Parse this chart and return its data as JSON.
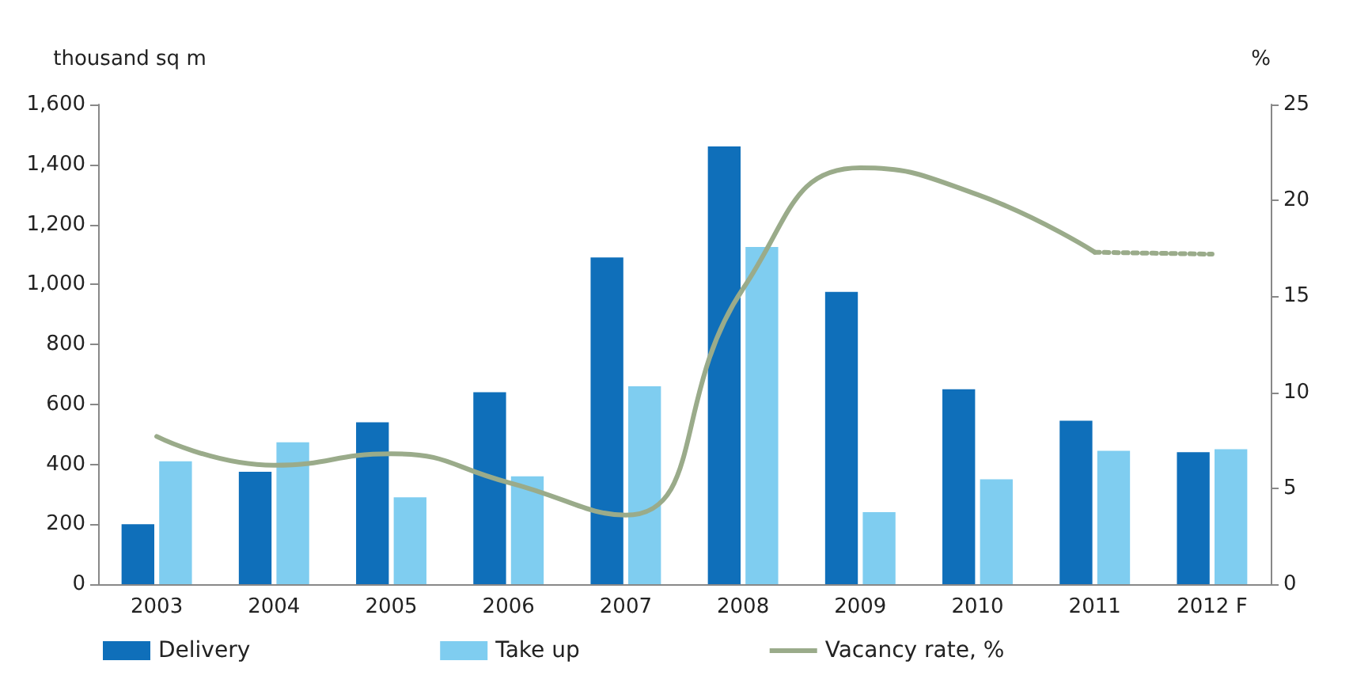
{
  "chart_data": {
    "type": "bar",
    "ylabel": "thousand sq m",
    "y2label": "%",
    "categories": [
      "2003",
      "2004",
      "2005",
      "2006",
      "2007",
      "2008",
      "2009",
      "2010",
      "2011",
      "2012 F"
    ],
    "series": [
      {
        "name": "Delivery",
        "color": "#0f6fba",
        "values": [
          200,
          375,
          540,
          640,
          1090,
          1460,
          975,
          650,
          545,
          440
        ]
      },
      {
        "name": "Take up",
        "color": "#7fcdf0",
        "values": [
          410,
          473,
          290,
          360,
          660,
          1125,
          240,
          350,
          445,
          450
        ]
      },
      {
        "name": "Vacancy rate, %",
        "type": "line",
        "axis": "y2",
        "color": "#9aab8a",
        "line_style": "solid",
        "values": [
          7.7,
          6.2,
          6.8,
          5.3,
          3.6,
          15.4,
          21.7,
          20.3,
          17.3,
          null
        ]
      },
      {
        "type": "line",
        "axis": "y2",
        "color": "#9aab8a",
        "line_style": "dotted",
        "values": [
          null,
          null,
          null,
          null,
          null,
          null,
          null,
          null,
          17.3,
          17.2
        ]
      }
    ],
    "ylim": [
      0,
      1600
    ],
    "yticks": [
      0,
      200,
      400,
      600,
      800,
      {
        "value": 1000,
        "label": "1,000"
      },
      {
        "value": 1200,
        "label": "1,200"
      },
      {
        "value": 1400,
        "label": "1,400"
      },
      {
        "value": 1600,
        "label": "1,600"
      }
    ],
    "y2lim": [
      0,
      25
    ],
    "y2ticks": [
      0,
      5,
      10,
      15,
      20,
      25
    ],
    "grid": false,
    "legend": "bottom",
    "marker": "none"
  }
}
